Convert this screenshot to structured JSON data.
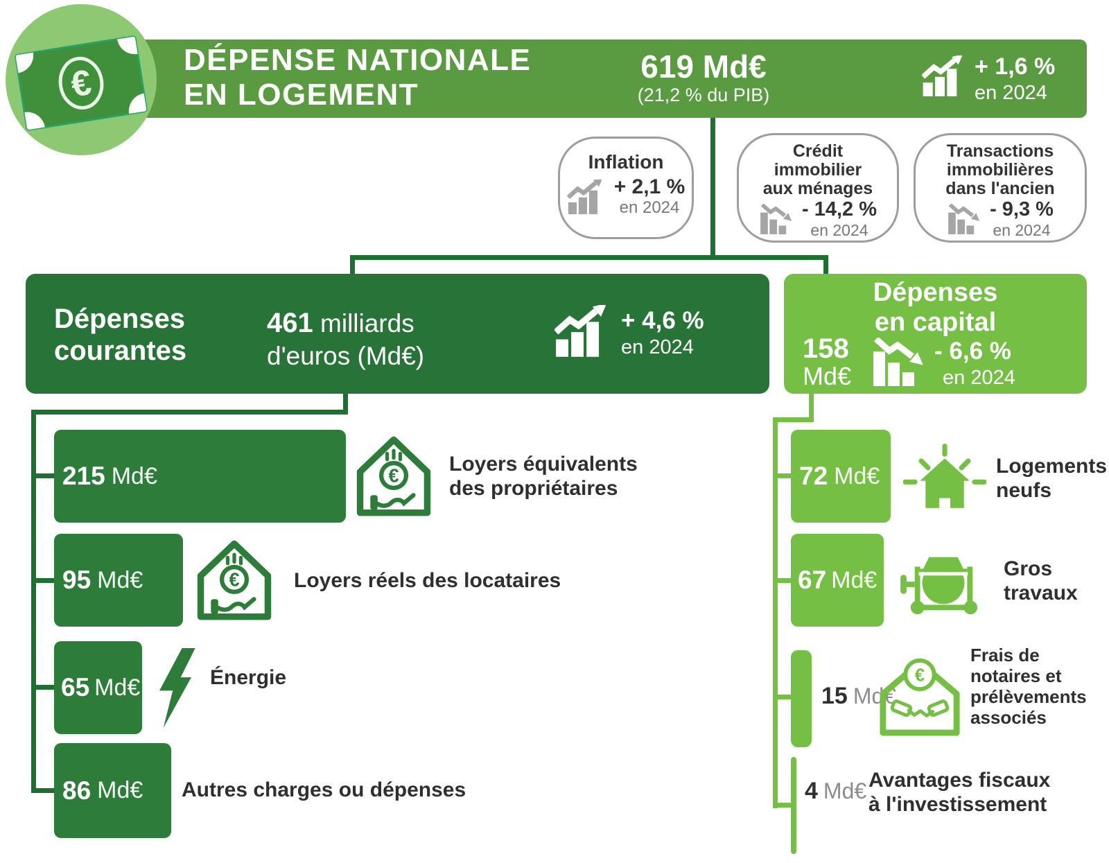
{
  "chart_data": {
    "type": "bar",
    "title": "Dépense nationale en logement",
    "unit": "Md€",
    "total": {
      "label": "Dépense nationale en logement",
      "value": 619,
      "pct_of_pib": 21.2,
      "change_pct_2024": 1.6
    },
    "context_indicators": [
      {
        "label": "Inflation",
        "change_pct_2024": 2.1
      },
      {
        "label": "Crédit immobilier aux ménages",
        "change_pct_2024": -14.2
      },
      {
        "label": "Transactions immobilières dans l'ancien",
        "change_pct_2024": -9.3
      }
    ],
    "series": [
      {
        "name": "Dépenses courantes",
        "total": 461,
        "change_pct_2024": 4.6,
        "categories": [
          "Loyers équivalents des propriétaires",
          "Loyers réels des locataires",
          "Énergie",
          "Autres charges ou dépenses"
        ],
        "values": [
          215,
          95,
          65,
          86
        ]
      },
      {
        "name": "Dépenses en capital",
        "total": 158,
        "change_pct_2024": -6.6,
        "categories": [
          "Logements neufs",
          "Gros travaux",
          "Frais de notaires et prélèvements associés",
          "Avantages fiscaux à l'investissement"
        ],
        "values": [
          72,
          67,
          15,
          4
        ]
      }
    ]
  },
  "header": {
    "title_line1": "DÉPENSE NATIONALE",
    "title_line2": "EN LOGEMENT",
    "total_value": "619 Md€",
    "total_note": "(21,2 % du PIB)",
    "trend_value": "+ 1,6 %",
    "trend_period": "en 2024"
  },
  "bubbles": [
    {
      "title_line1": "Inflation",
      "title_line2": "",
      "title_line3": "",
      "value": "+ 2,1 %",
      "period": "en 2024"
    },
    {
      "title_line1": "Crédit",
      "title_line2": "immobilier",
      "title_line3": "aux ménages",
      "value": "- 14,2 %",
      "period": "en 2024"
    },
    {
      "title_line1": "Transactions",
      "title_line2": "immobilières",
      "title_line3": "dans l'ancien",
      "value": "- 9,3 %",
      "period": "en 2024"
    }
  ],
  "current": {
    "title_line1": "Dépenses",
    "title_line2": "courantes",
    "amount_value": "461",
    "amount_unit1": "milliards",
    "amount_unit2": "d'euros (Md€)",
    "trend_value": "+ 4,6 %",
    "trend_period": "en 2024"
  },
  "capital": {
    "title_line1": "Dépenses",
    "title_line2": "en capital",
    "amount_value": "158",
    "amount_unit": "Md€",
    "trend_value": "- 6,6 %",
    "trend_period": "en 2024"
  },
  "current_items": [
    {
      "value": "215",
      "unit": "Md€",
      "label_line1": "Loyers équivalents",
      "label_line2": "des propriétaires"
    },
    {
      "value": "95",
      "unit": "Md€",
      "label_line1": "Loyers réels des locataires",
      "label_line2": ""
    },
    {
      "value": "65",
      "unit": "Md€",
      "label_line1": "Énergie",
      "label_line2": ""
    },
    {
      "value": "86",
      "unit": "Md€",
      "label_line1": "Autres charges ou dépenses",
      "label_line2": ""
    }
  ],
  "capital_items": [
    {
      "value": "72",
      "unit": "Md€",
      "label_line1": "Logements",
      "label_line2": "neufs"
    },
    {
      "value": "67",
      "unit": "Md€",
      "label_line1": "Gros",
      "label_line2": "travaux"
    },
    {
      "value": "15",
      "unit": "Md€",
      "label_line1": "Frais de",
      "label_line2": "notaires et",
      "label_line3": "prélèvements",
      "label_line4": "associés"
    },
    {
      "value": "4",
      "unit": "Md€",
      "label_line1": "Avantages fiscaux",
      "label_line2": "à l'investissement"
    }
  ],
  "colors": {
    "banner_green": "#5a9b41",
    "dark_green": "#287438",
    "bar_dark_green": "#2e7c3a",
    "light_green": "#76bf45",
    "connector_dark": "#1e7031",
    "circle_green": "#8dc873",
    "text_dark": "#2f2f2f",
    "gray_icon": "#a5a5a5"
  }
}
